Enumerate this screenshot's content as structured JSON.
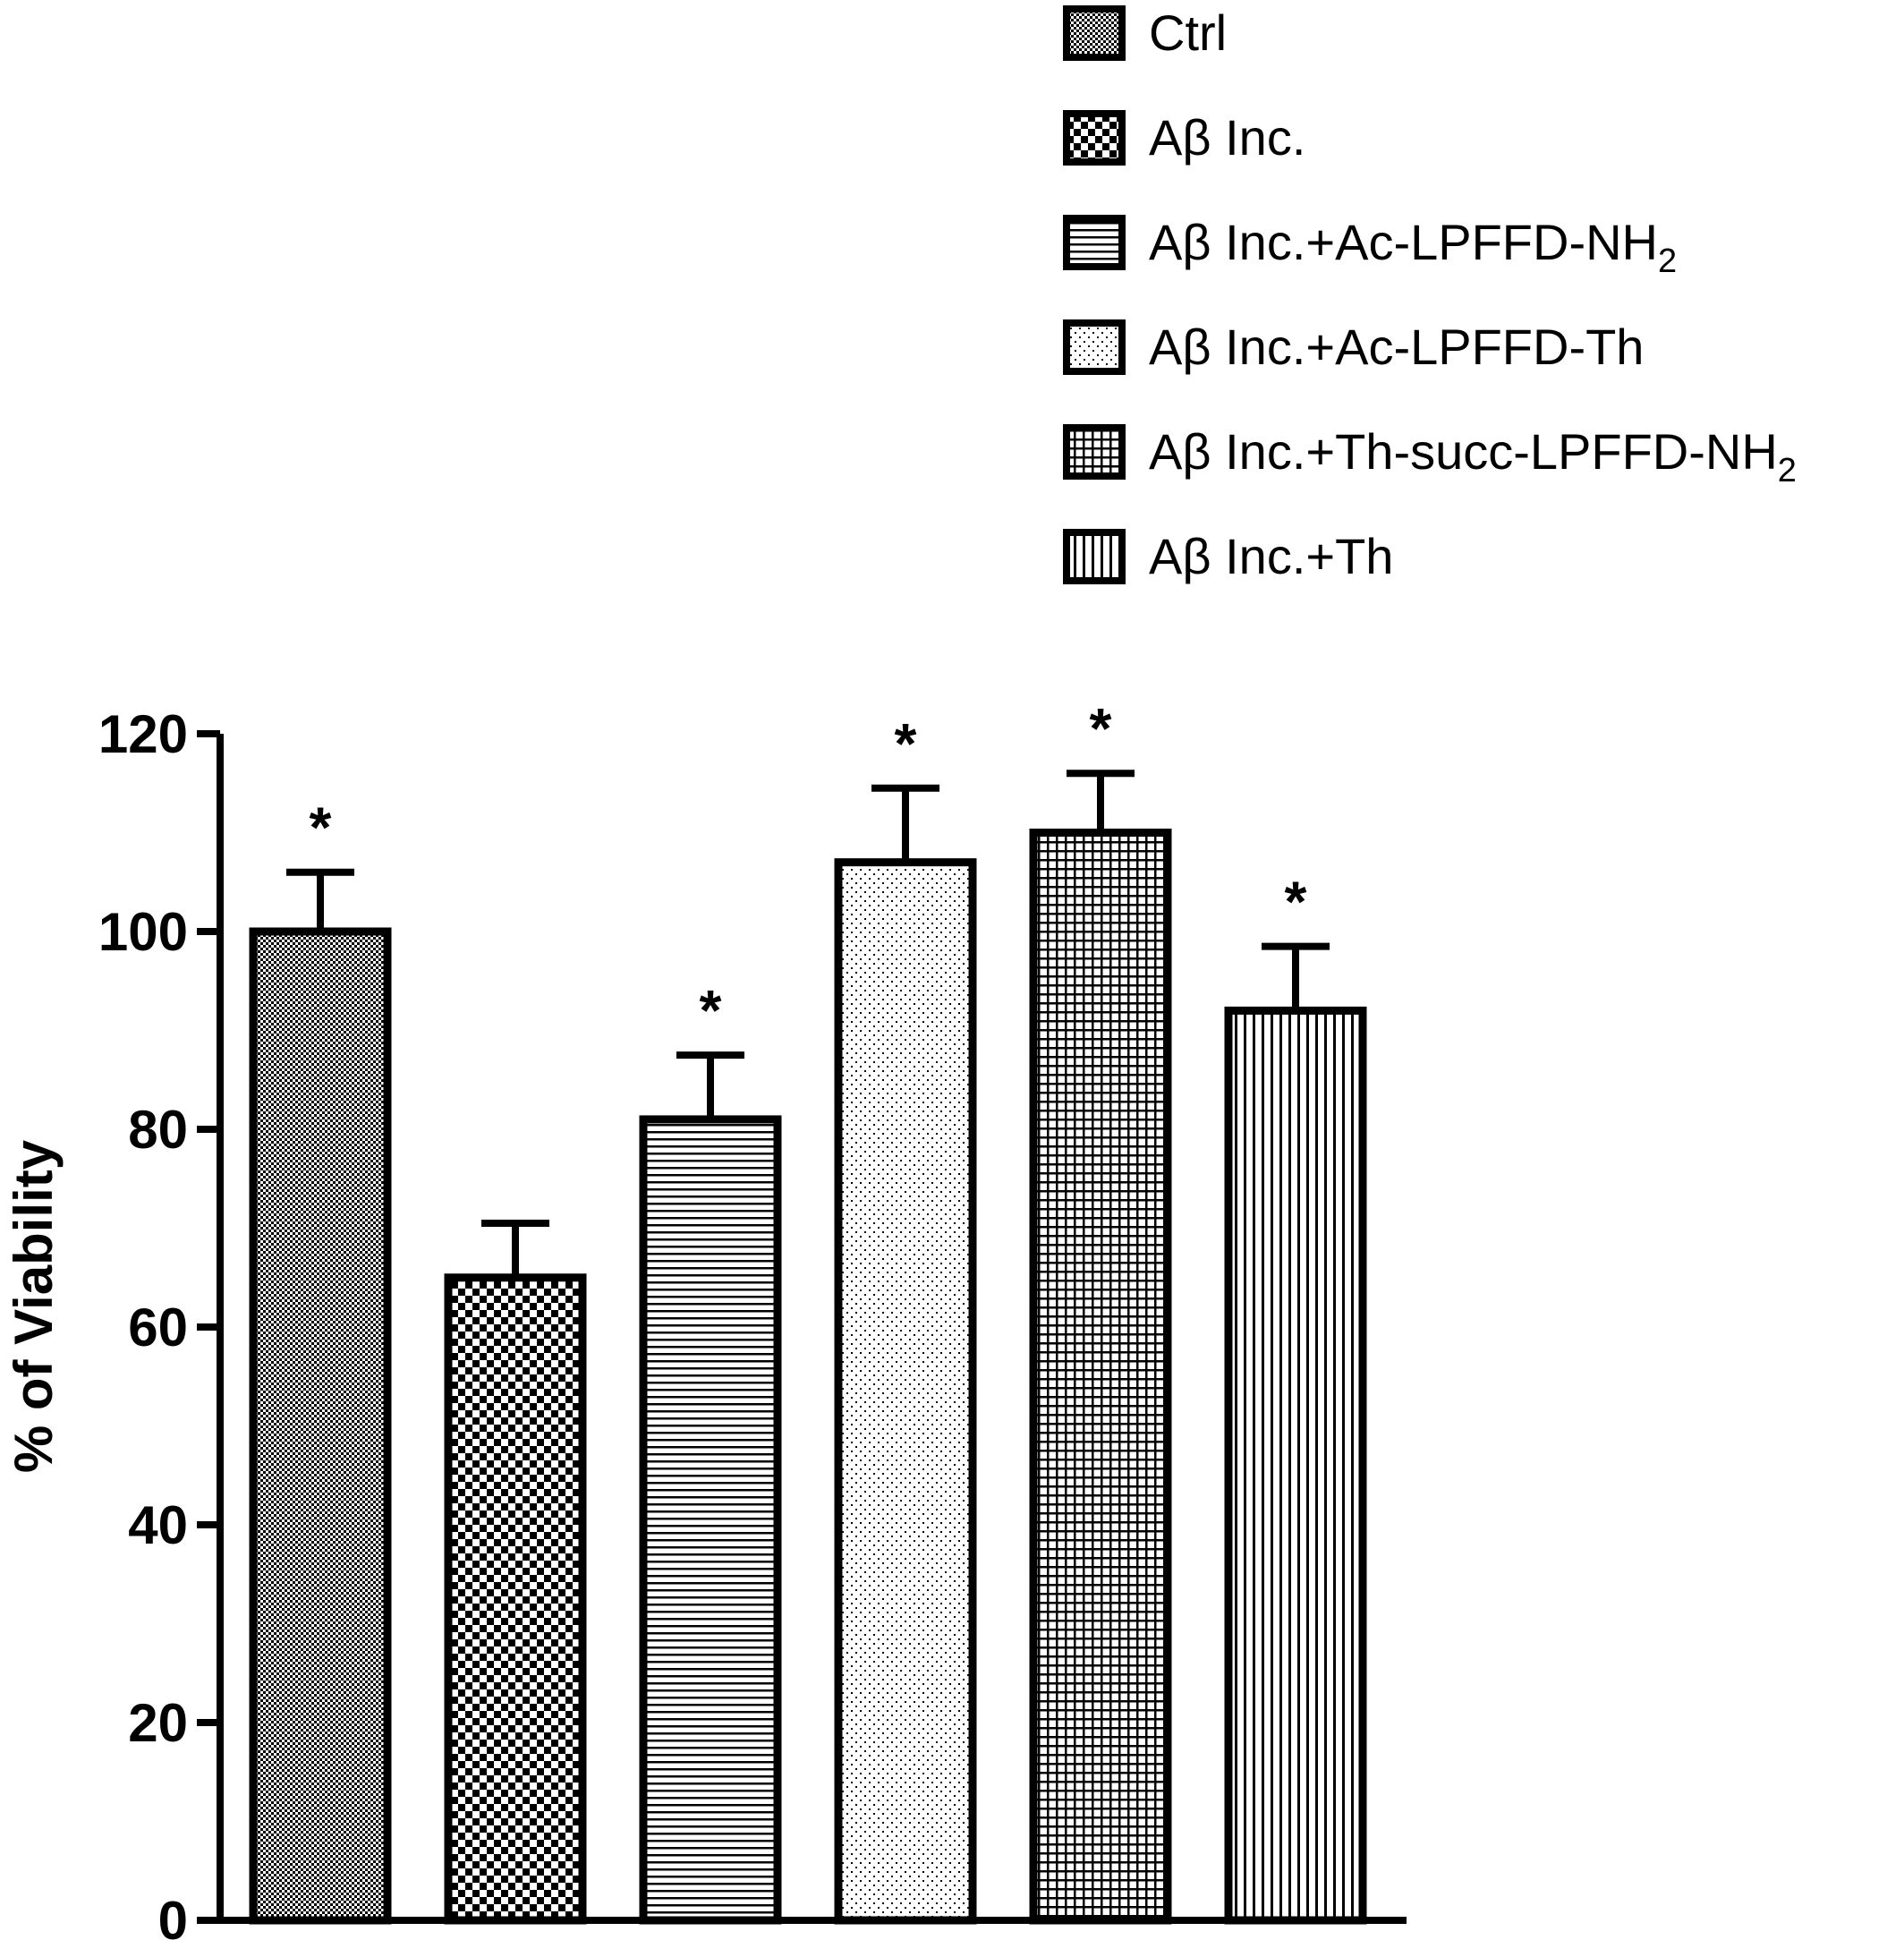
{
  "chart_data": {
    "type": "bar",
    "categories": [
      "Ctrl",
      "Aβ Inc.",
      "Aβ Inc.+Ac-LPFFD-NH2",
      "Aβ Inc.+Ac-LPFFD-Th",
      "Aβ Inc.+Th-succ-LPFFD-NH2",
      "Aβ Inc.+Th"
    ],
    "legend": [
      {
        "prefix": "Ctrl",
        "sub": ""
      },
      {
        "prefix": "Aβ Inc.",
        "sub": ""
      },
      {
        "prefix": "Aβ Inc.+Ac-LPFFD-NH",
        "sub": "2"
      },
      {
        "prefix": "Aβ Inc.+Ac-LPFFD-Th",
        "sub": ""
      },
      {
        "prefix": "Aβ Inc.+Th-succ-LPFFD-NH",
        "sub": "2"
      },
      {
        "prefix": "Aβ Inc.+Th",
        "sub": ""
      }
    ],
    "patterns": [
      "dense-dots",
      "checker",
      "horizontal-lines",
      "sparse-dots",
      "grid",
      "vertical-lines"
    ],
    "values": [
      100,
      65,
      81,
      107,
      110,
      92
    ],
    "errors": [
      6,
      5.5,
      6.5,
      7.5,
      6,
      6.5
    ],
    "significance": [
      "*",
      "",
      "*",
      "*",
      "*",
      "*"
    ],
    "ylabel": "% of Viability",
    "ylim": [
      0,
      120
    ],
    "yticks": [
      0,
      20,
      40,
      60,
      80,
      100,
      120
    ],
    "grid": false,
    "legend_position": "top-right",
    "colors": {
      "stroke": "#000000",
      "fill": "#ffffff"
    }
  }
}
